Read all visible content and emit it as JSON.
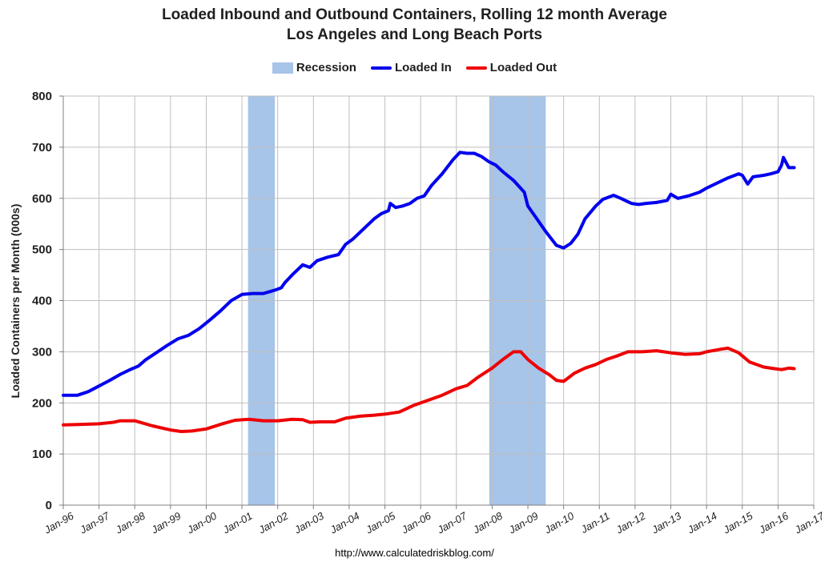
{
  "chart_data": {
    "type": "line",
    "title": "Loaded Inbound and Outbound Containers, Rolling 12 month Average",
    "subtitle": "Los Angeles and Long Beach Ports",
    "ylabel": "Loaded Containers per Month (000s)",
    "xlabel": "",
    "ylim": [
      0,
      800
    ],
    "yticks": [
      0,
      100,
      200,
      300,
      400,
      500,
      600,
      700,
      800
    ],
    "xlim": [
      1996,
      2017
    ],
    "xticks": [
      {
        "x": 1996,
        "label": "Jan-96"
      },
      {
        "x": 1997,
        "label": "Jan-97"
      },
      {
        "x": 1998,
        "label": "Jan-98"
      },
      {
        "x": 1999,
        "label": "Jan-99"
      },
      {
        "x": 2000,
        "label": "Jan-00"
      },
      {
        "x": 2001,
        "label": "Jan-01"
      },
      {
        "x": 2002,
        "label": "Jan-02"
      },
      {
        "x": 2003,
        "label": "Jan-03"
      },
      {
        "x": 2004,
        "label": "Jan-04"
      },
      {
        "x": 2005,
        "label": "Jan-05"
      },
      {
        "x": 2006,
        "label": "Jan-06"
      },
      {
        "x": 2007,
        "label": "Jan-07"
      },
      {
        "x": 2008,
        "label": "Jan-08"
      },
      {
        "x": 2009,
        "label": "Jan-09"
      },
      {
        "x": 2010,
        "label": "Jan-10"
      },
      {
        "x": 2011,
        "label": "Jan-11"
      },
      {
        "x": 2012,
        "label": "Jan-12"
      },
      {
        "x": 2013,
        "label": "Jan-13"
      },
      {
        "x": 2014,
        "label": "Jan-14"
      },
      {
        "x": 2015,
        "label": "Jan-15"
      },
      {
        "x": 2016,
        "label": "Jan-16"
      },
      {
        "x": 2017,
        "label": "Jan-17"
      }
    ],
    "grid": true,
    "legend_position": "top-center",
    "recessions": [
      {
        "name": "Recession",
        "start": 2001.17,
        "end": 2001.92
      },
      {
        "name": "Recession",
        "start": 2007.92,
        "end": 2009.5
      }
    ],
    "series": [
      {
        "name": "Loaded In",
        "color": "#0000ee",
        "points": [
          [
            1996.0,
            215
          ],
          [
            1996.4,
            215
          ],
          [
            1996.7,
            222
          ],
          [
            1997.0,
            233
          ],
          [
            1997.3,
            244
          ],
          [
            1997.6,
            256
          ],
          [
            1997.9,
            266
          ],
          [
            1998.1,
            272
          ],
          [
            1998.3,
            284
          ],
          [
            1998.6,
            298
          ],
          [
            1998.9,
            312
          ],
          [
            1999.2,
            325
          ],
          [
            1999.5,
            332
          ],
          [
            1999.8,
            345
          ],
          [
            2000.1,
            362
          ],
          [
            2000.4,
            380
          ],
          [
            2000.7,
            400
          ],
          [
            2001.0,
            412
          ],
          [
            2001.3,
            414
          ],
          [
            2001.6,
            414
          ],
          [
            2001.9,
            420
          ],
          [
            2002.1,
            425
          ],
          [
            2002.2,
            435
          ],
          [
            2002.4,
            450
          ],
          [
            2002.7,
            470
          ],
          [
            2002.9,
            465
          ],
          [
            2003.1,
            478
          ],
          [
            2003.4,
            485
          ],
          [
            2003.7,
            490
          ],
          [
            2003.9,
            510
          ],
          [
            2004.1,
            520
          ],
          [
            2004.4,
            540
          ],
          [
            2004.7,
            560
          ],
          [
            2004.9,
            570
          ],
          [
            2005.1,
            576
          ],
          [
            2005.15,
            590
          ],
          [
            2005.3,
            582
          ],
          [
            2005.5,
            585
          ],
          [
            2005.7,
            590
          ],
          [
            2005.9,
            600
          ],
          [
            2006.1,
            605
          ],
          [
            2006.3,
            625
          ],
          [
            2006.6,
            648
          ],
          [
            2006.9,
            675
          ],
          [
            2007.1,
            690
          ],
          [
            2007.3,
            688
          ],
          [
            2007.5,
            688
          ],
          [
            2007.7,
            682
          ],
          [
            2007.9,
            672
          ],
          [
            2008.1,
            665
          ],
          [
            2008.3,
            652
          ],
          [
            2008.6,
            635
          ],
          [
            2008.9,
            612
          ],
          [
            2009.0,
            585
          ],
          [
            2009.2,
            565
          ],
          [
            2009.5,
            535
          ],
          [
            2009.8,
            508
          ],
          [
            2010.0,
            503
          ],
          [
            2010.2,
            512
          ],
          [
            2010.4,
            530
          ],
          [
            2010.6,
            560
          ],
          [
            2010.9,
            585
          ],
          [
            2011.1,
            598
          ],
          [
            2011.4,
            606
          ],
          [
            2011.6,
            600
          ],
          [
            2011.9,
            590
          ],
          [
            2012.1,
            588
          ],
          [
            2012.3,
            590
          ],
          [
            2012.6,
            592
          ],
          [
            2012.9,
            596
          ],
          [
            2013.0,
            608
          ],
          [
            2013.2,
            600
          ],
          [
            2013.5,
            605
          ],
          [
            2013.8,
            612
          ],
          [
            2014.0,
            620
          ],
          [
            2014.3,
            630
          ],
          [
            2014.6,
            640
          ],
          [
            2014.9,
            648
          ],
          [
            2015.0,
            645
          ],
          [
            2015.15,
            628
          ],
          [
            2015.3,
            642
          ],
          [
            2015.6,
            645
          ],
          [
            2015.8,
            648
          ],
          [
            2016.0,
            652
          ],
          [
            2016.1,
            665
          ],
          [
            2016.15,
            680
          ],
          [
            2016.3,
            660
          ],
          [
            2016.45,
            660
          ]
        ]
      },
      {
        "name": "Loaded Out",
        "color": "#ee0000",
        "points": [
          [
            1996.0,
            157
          ],
          [
            1996.5,
            158
          ],
          [
            1997.0,
            159
          ],
          [
            1997.4,
            162
          ],
          [
            1997.6,
            165
          ],
          [
            1998.0,
            165
          ],
          [
            1998.5,
            155
          ],
          [
            1999.0,
            147
          ],
          [
            1999.3,
            144
          ],
          [
            1999.6,
            145
          ],
          [
            2000.0,
            149
          ],
          [
            2000.4,
            158
          ],
          [
            2000.8,
            166
          ],
          [
            2001.2,
            168
          ],
          [
            2001.6,
            165
          ],
          [
            2002.0,
            165
          ],
          [
            2002.4,
            168
          ],
          [
            2002.7,
            167
          ],
          [
            2002.9,
            162
          ],
          [
            2003.2,
            163
          ],
          [
            2003.6,
            163
          ],
          [
            2003.9,
            170
          ],
          [
            2004.3,
            174
          ],
          [
            2004.7,
            176
          ],
          [
            2005.0,
            178
          ],
          [
            2005.4,
            182
          ],
          [
            2005.8,
            195
          ],
          [
            2006.2,
            205
          ],
          [
            2006.6,
            215
          ],
          [
            2007.0,
            228
          ],
          [
            2007.3,
            234
          ],
          [
            2007.6,
            250
          ],
          [
            2008.0,
            268
          ],
          [
            2008.3,
            285
          ],
          [
            2008.6,
            300
          ],
          [
            2008.8,
            300
          ],
          [
            2009.0,
            285
          ],
          [
            2009.3,
            268
          ],
          [
            2009.6,
            255
          ],
          [
            2009.8,
            244
          ],
          [
            2010.0,
            242
          ],
          [
            2010.3,
            258
          ],
          [
            2010.6,
            268
          ],
          [
            2010.9,
            275
          ],
          [
            2011.2,
            285
          ],
          [
            2011.5,
            292
          ],
          [
            2011.8,
            300
          ],
          [
            2012.2,
            300
          ],
          [
            2012.6,
            302
          ],
          [
            2013.0,
            298
          ],
          [
            2013.4,
            295
          ],
          [
            2013.8,
            296
          ],
          [
            2014.0,
            300
          ],
          [
            2014.4,
            305
          ],
          [
            2014.6,
            307
          ],
          [
            2014.9,
            298
          ],
          [
            2015.2,
            280
          ],
          [
            2015.6,
            270
          ],
          [
            2015.9,
            267
          ],
          [
            2016.1,
            265
          ],
          [
            2016.3,
            268
          ],
          [
            2016.45,
            267
          ]
        ]
      }
    ]
  },
  "legend": {
    "recession_label": "Recession",
    "loaded_in_label": "Loaded In",
    "loaded_out_label": "Loaded Out"
  },
  "footer": {
    "url": "http://www.calculatedriskblog.com/"
  }
}
